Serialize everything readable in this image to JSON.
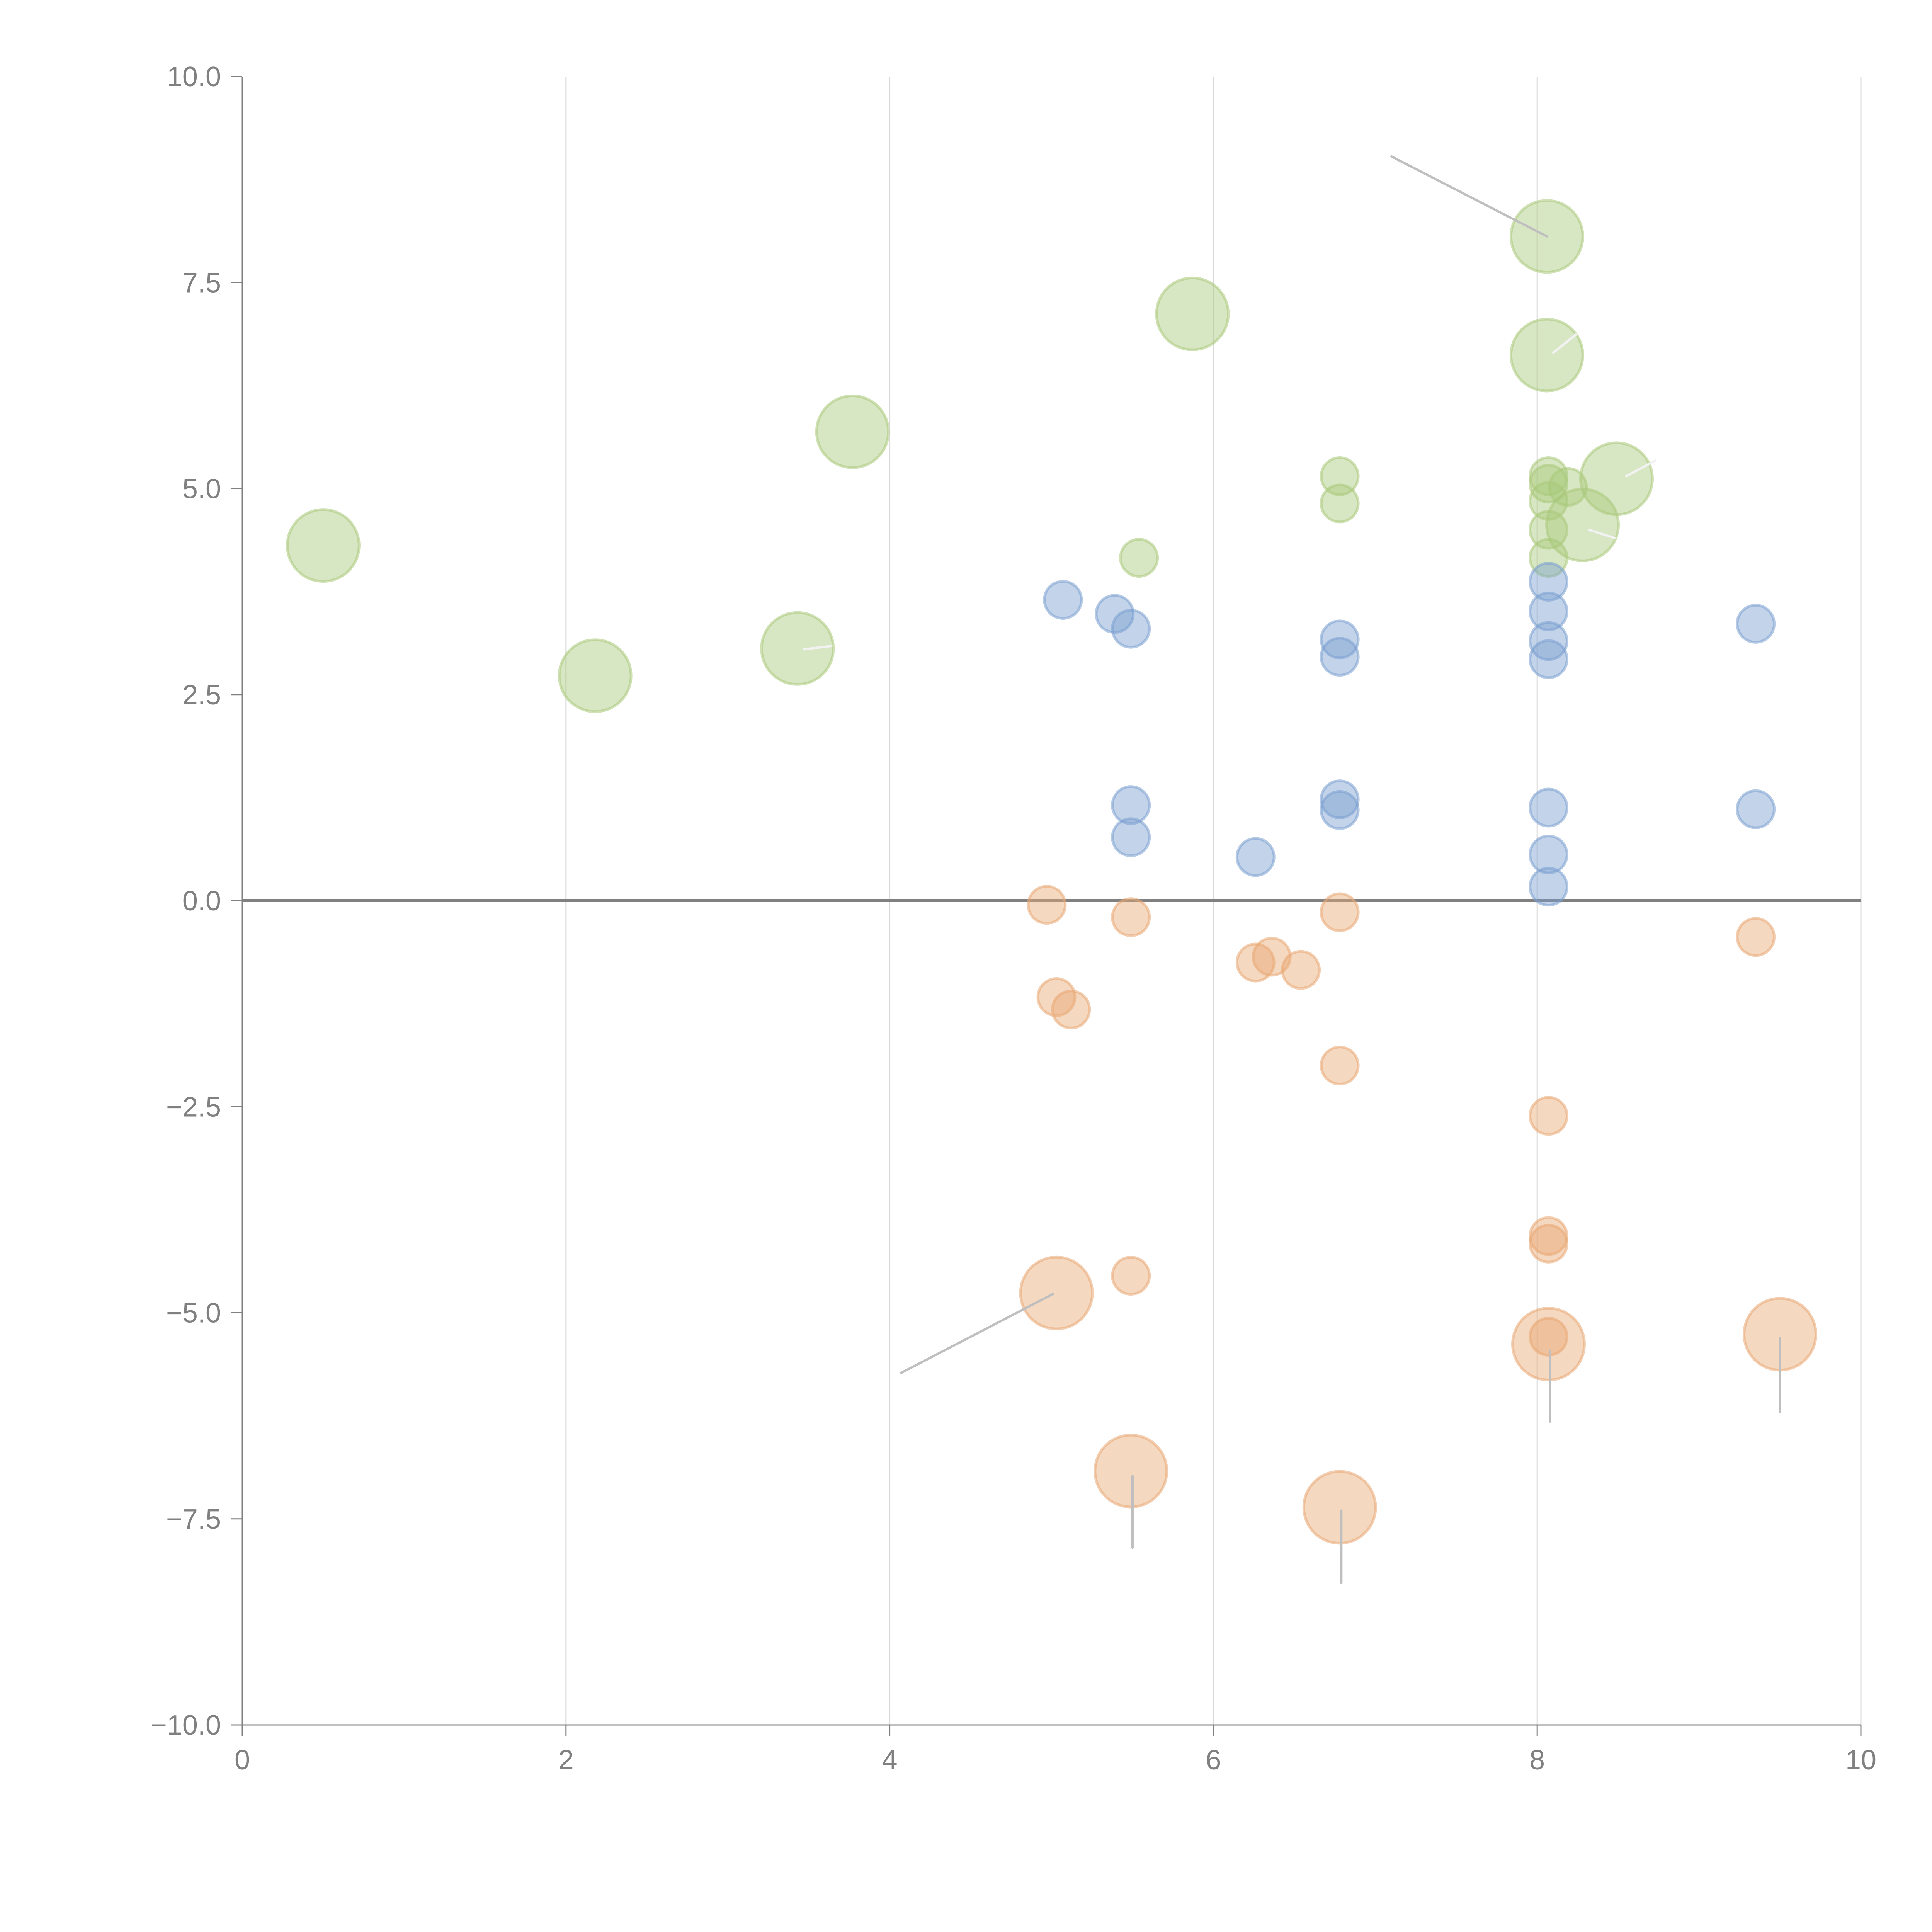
{
  "chart_data": {
    "type": "scatter",
    "subtype": "bubble",
    "title": "",
    "xlabel": "",
    "ylabel": "",
    "xlim": [
      0,
      10
    ],
    "ylim": [
      -10,
      10
    ],
    "grid": "vertical",
    "legend": "none",
    "x_ticks": [
      "0",
      "2",
      "4",
      "6",
      "8",
      "10"
    ],
    "x_tick_values": [
      0,
      2,
      4,
      6,
      8,
      10
    ],
    "y_ticks": [
      "10.0",
      "7.5",
      "5.0",
      "2.5",
      "0.0",
      "−2.5",
      "−5.0",
      "−7.5",
      "−10.0"
    ],
    "y_tick_values": [
      10,
      7.5,
      5,
      2.5,
      0,
      -2.5,
      -5,
      -7.5,
      -10
    ],
    "reference_line_y": 0,
    "colors": {
      "green": "#a9c97a",
      "blue": "#7a9fd0",
      "orange": "#e8a873"
    },
    "series": [
      {
        "name": "green",
        "color": "#a9c97a",
        "points": [
          {
            "x": 0.5,
            "y": 4.31,
            "size": 3
          },
          {
            "x": 2.18,
            "y": 2.73,
            "size": 3
          },
          {
            "x": 3.43,
            "y": 3.06,
            "size": 3
          },
          {
            "x": 3.77,
            "y": 5.69,
            "size": 3
          },
          {
            "x": 5.87,
            "y": 7.12,
            "size": 3
          },
          {
            "x": 5.54,
            "y": 4.16,
            "size": 1
          },
          {
            "x": 6.78,
            "y": 5.15,
            "size": 1
          },
          {
            "x": 6.78,
            "y": 4.82,
            "size": 1
          },
          {
            "x": 8.06,
            "y": 8.06,
            "size": 3
          },
          {
            "x": 8.06,
            "y": 6.62,
            "size": 3
          },
          {
            "x": 8.07,
            "y": 5.15,
            "size": 1
          },
          {
            "x": 8.07,
            "y": 5.06,
            "size": 1
          },
          {
            "x": 8.19,
            "y": 5.02,
            "size": 1
          },
          {
            "x": 8.07,
            "y": 4.85,
            "size": 1
          },
          {
            "x": 8.07,
            "y": 4.5,
            "size": 1
          },
          {
            "x": 8.07,
            "y": 4.16,
            "size": 1
          },
          {
            "x": 8.28,
            "y": 4.56,
            "size": 3
          },
          {
            "x": 8.49,
            "y": 5.12,
            "size": 3
          }
        ]
      },
      {
        "name": "blue",
        "color": "#7a9fd0",
        "points": [
          {
            "x": 5.07,
            "y": 3.65,
            "size": 1
          },
          {
            "x": 5.39,
            "y": 3.48,
            "size": 1
          },
          {
            "x": 5.49,
            "y": 3.3,
            "size": 1
          },
          {
            "x": 5.49,
            "y": 1.16,
            "size": 1
          },
          {
            "x": 5.49,
            "y": 0.77,
            "size": 1
          },
          {
            "x": 6.26,
            "y": 0.53,
            "size": 1
          },
          {
            "x": 6.78,
            "y": 3.17,
            "size": 1
          },
          {
            "x": 6.78,
            "y": 2.96,
            "size": 1
          },
          {
            "x": 6.78,
            "y": 1.23,
            "size": 1
          },
          {
            "x": 6.78,
            "y": 1.1,
            "size": 1
          },
          {
            "x": 8.07,
            "y": 3.87,
            "size": 1
          },
          {
            "x": 8.07,
            "y": 3.51,
            "size": 1
          },
          {
            "x": 8.07,
            "y": 3.15,
            "size": 1
          },
          {
            "x": 8.07,
            "y": 2.93,
            "size": 1
          },
          {
            "x": 8.07,
            "y": 1.13,
            "size": 1
          },
          {
            "x": 8.07,
            "y": 0.56,
            "size": 1
          },
          {
            "x": 8.07,
            "y": 0.17,
            "size": 1
          },
          {
            "x": 9.35,
            "y": 3.36,
            "size": 1
          },
          {
            "x": 9.35,
            "y": 1.11,
            "size": 1
          }
        ]
      },
      {
        "name": "orange",
        "color": "#e8a873",
        "points": [
          {
            "x": 4.97,
            "y": -0.05,
            "size": 1
          },
          {
            "x": 5.49,
            "y": -0.2,
            "size": 1
          },
          {
            "x": 5.03,
            "y": -1.17,
            "size": 1
          },
          {
            "x": 5.12,
            "y": -1.32,
            "size": 1
          },
          {
            "x": 6.26,
            "y": -0.75,
            "size": 1
          },
          {
            "x": 6.36,
            "y": -0.68,
            "size": 1
          },
          {
            "x": 6.54,
            "y": -0.84,
            "size": 1
          },
          {
            "x": 6.78,
            "y": -0.14,
            "size": 1
          },
          {
            "x": 6.78,
            "y": -2.0,
            "size": 1
          },
          {
            "x": 8.07,
            "y": -2.61,
            "size": 1
          },
          {
            "x": 8.07,
            "y": -4.07,
            "size": 1
          },
          {
            "x": 8.07,
            "y": -4.16,
            "size": 1
          },
          {
            "x": 9.35,
            "y": -0.44,
            "size": 1
          },
          {
            "x": 5.49,
            "y": -4.55,
            "size": 1
          },
          {
            "x": 5.03,
            "y": -4.76,
            "size": 3
          },
          {
            "x": 8.07,
            "y": -5.38,
            "size": 3
          },
          {
            "x": 8.07,
            "y": -5.29,
            "size": 1
          },
          {
            "x": 9.5,
            "y": -5.26,
            "size": 3
          },
          {
            "x": 5.49,
            "y": -6.92,
            "size": 3
          },
          {
            "x": 6.78,
            "y": -7.36,
            "size": 3
          }
        ]
      }
    ],
    "annotation_leaders": [
      {
        "from": [
          8.06,
          8.06
        ],
        "to": [
          7.1,
          9.03
        ],
        "color": "#bfbfbf"
      },
      {
        "from": [
          8.1,
          6.65
        ],
        "to": [
          8.24,
          6.87
        ],
        "color": "#f2f2f2"
      },
      {
        "from": [
          8.55,
          5.15
        ],
        "to": [
          8.73,
          5.34
        ],
        "color": "#f2f2f2"
      },
      {
        "from": [
          8.32,
          4.5
        ],
        "to": [
          8.48,
          4.4
        ],
        "color": "#f2f2f2"
      },
      {
        "from": [
          3.47,
          3.05
        ],
        "to": [
          3.64,
          3.09
        ],
        "color": "#f2f2f2"
      },
      {
        "from": [
          5.01,
          -4.77
        ],
        "to": [
          4.07,
          -5.73
        ],
        "color": "#bfbfbf"
      },
      {
        "from": [
          8.08,
          -5.46
        ],
        "to": [
          8.08,
          -6.32
        ],
        "color": "#bfbfbf"
      },
      {
        "from": [
          9.5,
          -5.31
        ],
        "to": [
          9.5,
          -6.2
        ],
        "color": "#bfbfbf"
      },
      {
        "from": [
          5.5,
          -6.98
        ],
        "to": [
          5.5,
          -7.85
        ],
        "color": "#bfbfbf"
      },
      {
        "from": [
          6.79,
          -7.4
        ],
        "to": [
          6.79,
          -8.28
        ],
        "color": "#bfbfbf"
      }
    ]
  }
}
